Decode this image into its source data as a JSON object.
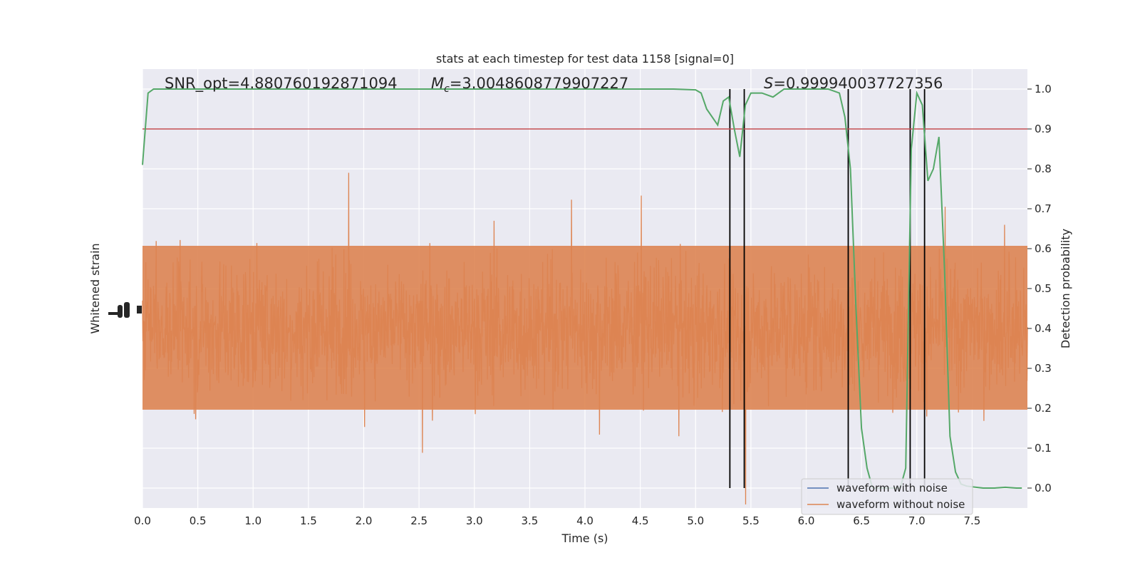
{
  "chart_data": {
    "type": "line",
    "title": "stats at each timestep for test data 1158 [signal=0]",
    "xlabel": "Time (s)",
    "ylabel_left": "Whitened strain",
    "ylabel_right": "Detection probability",
    "xlim": [
      0.0,
      8.0
    ],
    "ylim_right": [
      -0.05,
      1.05
    ],
    "grid": true,
    "x_ticks": [
      "0.0",
      "0.5",
      "1.0",
      "1.5",
      "2.0",
      "2.5",
      "3.0",
      "3.5",
      "4.0",
      "4.5",
      "5.0",
      "5.5",
      "6.0",
      "6.5",
      "7.0",
      "7.5"
    ],
    "y_ticks_right": [
      "0.0",
      "0.1",
      "0.2",
      "0.3",
      "0.4",
      "0.5",
      "0.6",
      "0.7",
      "0.8",
      "0.9",
      "1.0"
    ],
    "annotations": {
      "snr": "SNR_opt=4.880760192871094",
      "mc_symbol": "M",
      "mc_sub": "c",
      "mc_value": "=3.0048608779907227",
      "s_symbol": "S",
      "s_value": "=0.999940037727356"
    },
    "threshold": {
      "value": 0.9,
      "color": "#c44e52"
    },
    "vlines_x": [
      5.31,
      5.44,
      6.38,
      6.94,
      7.07
    ],
    "series": [
      {
        "name": "waveform with noise",
        "color": "#4c72b0"
      },
      {
        "name": "waveform without noise",
        "color": "#dd8452"
      },
      {
        "color": "#55a868",
        "x": [
          0.0,
          0.05,
          0.1,
          0.15,
          0.2,
          0.5,
          1.0,
          2.0,
          3.0,
          4.0,
          4.5,
          4.8,
          5.0,
          5.05,
          5.1,
          5.2,
          5.25,
          5.3,
          5.35,
          5.4,
          5.45,
          5.5,
          5.55,
          5.6,
          5.7,
          5.75,
          5.8,
          5.9,
          6.0,
          6.1,
          6.2,
          6.3,
          6.35,
          6.4,
          6.45,
          6.5,
          6.55,
          6.6,
          6.65,
          6.7,
          6.75,
          6.8,
          6.85,
          6.9,
          6.95,
          7.0,
          7.05,
          7.1,
          7.15,
          7.2,
          7.25,
          7.3,
          7.35,
          7.4,
          7.45,
          7.5,
          7.6,
          7.7,
          7.8,
          7.9,
          7.95
        ],
        "y": [
          0.81,
          0.99,
          1.0,
          1.0,
          1.0,
          1.0,
          1.0,
          1.0,
          1.0,
          1.0,
          1.0,
          1.0,
          0.998,
          0.99,
          0.95,
          0.91,
          0.97,
          0.98,
          0.9,
          0.83,
          0.96,
          0.99,
          0.99,
          0.99,
          0.98,
          0.99,
          1.0,
          1.0,
          1.0,
          1.0,
          1.0,
          0.99,
          0.93,
          0.8,
          0.45,
          0.15,
          0.05,
          0.0,
          0.0,
          0.0,
          0.0,
          0.0,
          0.0,
          0.05,
          0.85,
          0.99,
          0.96,
          0.77,
          0.8,
          0.88,
          0.55,
          0.13,
          0.04,
          0.01,
          0.005,
          0.003,
          0.0,
          0.0,
          0.002,
          0.0,
          0.0
        ]
      }
    ]
  }
}
